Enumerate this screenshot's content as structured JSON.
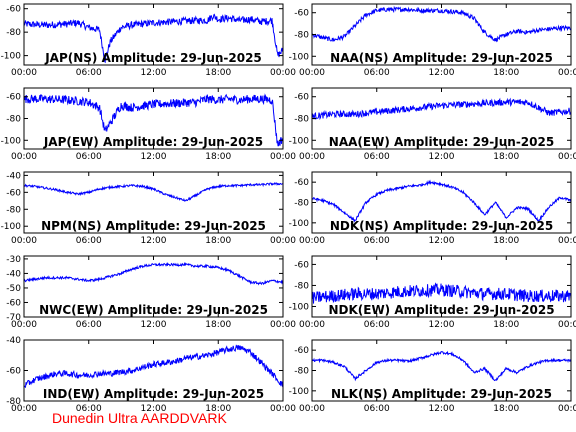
{
  "footer": "Dunedin Ultra AARDDVARK",
  "colors": {
    "trace": "#0000ff",
    "axes": "#000000",
    "footer": "#ff0000"
  },
  "chart_data": [
    {
      "type": "line",
      "title": "JAP(NS) Amplitude: 29-Jun-2025",
      "x_ticks": [
        "00:00",
        "06:00",
        "12:00",
        "18:00",
        "00:00"
      ],
      "ylim": [
        -108,
        -56
      ],
      "y_ticks": [
        -60,
        -80,
        -100
      ],
      "x": [
        0,
        2,
        4,
        5,
        6,
        7,
        7.5,
        8,
        9,
        10,
        12,
        14,
        16,
        17,
        17.5,
        18,
        19,
        20,
        21,
        22,
        23,
        23.5,
        24
      ],
      "y": [
        -73,
        -74,
        -73,
        -72,
        -76,
        -78,
        -104,
        -88,
        -76,
        -74,
        -72,
        -71,
        -70,
        -70,
        -66,
        -69,
        -68,
        -70,
        -69,
        -71,
        -70,
        -100,
        -95
      ]
    },
    {
      "type": "line",
      "title": "NAA(NS) Amplitude: 29-Jun-2025",
      "x_ticks": [
        "00:00",
        "06:00",
        "12:00",
        "18:00",
        "00:00"
      ],
      "ylim": [
        -108,
        -52
      ],
      "y_ticks": [
        -60,
        -80,
        -100
      ],
      "x": [
        0,
        1,
        2,
        3,
        4,
        5,
        6,
        7,
        8,
        9,
        10,
        11,
        12,
        13,
        14,
        15,
        16,
        17,
        18,
        19,
        20,
        21,
        22,
        23,
        24
      ],
      "y": [
        -80,
        -83,
        -85,
        -82,
        -72,
        -62,
        -58,
        -57,
        -57,
        -57,
        -58,
        -58,
        -58,
        -59,
        -60,
        -65,
        -78,
        -85,
        -80,
        -77,
        -78,
        -76,
        -75,
        -74,
        -74
      ]
    },
    {
      "type": "line",
      "title": "JAP(EW) Amplitude: 29-Jun-2025",
      "x_ticks": [
        "00:00",
        "06:00",
        "12:00",
        "18:00",
        "00:00"
      ],
      "ylim": [
        -108,
        -52
      ],
      "y_ticks": [
        -60,
        -80,
        -100
      ],
      "x": [
        0,
        2,
        4,
        5,
        6,
        7,
        7.5,
        8,
        9,
        10,
        12,
        14,
        16,
        17,
        18,
        19,
        20,
        21,
        22,
        23,
        23.5,
        24
      ],
      "y": [
        -62,
        -62,
        -63,
        -64,
        -65,
        -70,
        -92,
        -84,
        -68,
        -70,
        -67,
        -66,
        -65,
        -62,
        -63,
        -62,
        -63,
        -62,
        -62,
        -63,
        -104,
        -98
      ]
    },
    {
      "type": "line",
      "title": "NAA(EW) Amplitude: 29-Jun-2025",
      "x_ticks": [
        "00:00",
        "06:00",
        "12:00",
        "18:00",
        "00:00"
      ],
      "ylim": [
        -108,
        -52
      ],
      "y_ticks": [
        -60,
        -80,
        -100
      ],
      "x": [
        0,
        2,
        4,
        6,
        8,
        10,
        12,
        14,
        16,
        18,
        20,
        21,
        22,
        23,
        24
      ],
      "y": [
        -78,
        -76,
        -76,
        -74,
        -72,
        -70,
        -68,
        -67,
        -66,
        -65,
        -65,
        -70,
        -75,
        -74,
        -73
      ]
    },
    {
      "type": "line",
      "title": "NPM(NS) Amplitude: 29-Jun-2025",
      "x_ticks": [
        "00:00",
        "06:00",
        "12:00",
        "18:00",
        "00:00"
      ],
      "ylim": [
        -108,
        -36
      ],
      "y_ticks": [
        -40,
        -60,
        -80,
        -100
      ],
      "x": [
        0,
        1,
        2,
        3,
        4,
        5,
        6,
        7,
        8,
        9,
        10,
        11,
        12,
        13,
        14,
        15,
        16,
        17,
        18,
        19,
        20,
        21,
        22,
        23,
        24
      ],
      "y": [
        -52,
        -53,
        -55,
        -57,
        -60,
        -62,
        -60,
        -56,
        -54,
        -53,
        -52,
        -53,
        -56,
        -62,
        -66,
        -70,
        -63,
        -56,
        -53,
        -52,
        -52,
        -51,
        -51,
        -50,
        -50
      ]
    },
    {
      "type": "line",
      "title": "NDK(NS) Amplitude: 29-Jun-2025",
      "x_ticks": [
        "00:00",
        "06:00",
        "12:00",
        "18:00",
        "00:00"
      ],
      "ylim": [
        -110,
        -50
      ],
      "y_ticks": [
        -60,
        -80,
        -100
      ],
      "x": [
        0,
        1,
        2,
        3,
        4,
        5,
        6,
        7,
        8,
        9,
        10,
        11,
        12,
        13,
        14,
        15,
        16,
        17,
        18,
        19,
        20,
        21,
        22,
        23,
        24
      ],
      "y": [
        -76,
        -78,
        -82,
        -90,
        -98,
        -80,
        -72,
        -68,
        -66,
        -64,
        -63,
        -60,
        -62,
        -65,
        -70,
        -80,
        -92,
        -80,
        -95,
        -85,
        -86,
        -98,
        -84,
        -75,
        -78
      ]
    },
    {
      "type": "line",
      "title": "NWC(EW) Amplitude: 29-Jun-2025",
      "x_ticks": [
        "00:00",
        "06:00",
        "12:00",
        "18:00",
        "00:00"
      ],
      "ylim": [
        -70,
        -28
      ],
      "y_ticks": [
        -30,
        -40,
        -50,
        -60,
        -70
      ],
      "x": [
        0,
        1,
        2,
        3,
        4,
        5,
        6,
        7,
        8,
        9,
        10,
        11,
        12,
        13,
        14,
        15,
        16,
        17,
        18,
        19,
        20,
        21,
        22,
        23,
        24
      ],
      "y": [
        -45,
        -44,
        -43,
        -43,
        -43,
        -44,
        -45,
        -44,
        -42,
        -40,
        -37,
        -35,
        -34,
        -34,
        -34,
        -34,
        -35,
        -35,
        -36,
        -38,
        -42,
        -46,
        -47,
        -45,
        -46
      ]
    },
    {
      "type": "line",
      "title": "NDK(EW) Amplitude: 29-Jun-2025",
      "x_ticks": [
        "00:00",
        "06:00",
        "12:00",
        "18:00",
        "00:00"
      ],
      "ylim": [
        -110,
        -52
      ],
      "y_ticks": [
        -60,
        -80,
        -100
      ],
      "x": [
        0,
        2,
        4,
        6,
        8,
        10,
        12,
        14,
        16,
        18,
        20,
        22,
        24
      ],
      "y": [
        -92,
        -90,
        -88,
        -88,
        -86,
        -85,
        -84,
        -86,
        -88,
        -88,
        -90,
        -90,
        -90
      ]
    },
    {
      "type": "line",
      "title": "IND(EW) Amplitude: 29-Jun-2025",
      "x_ticks": [
        "00:00",
        "06:00",
        "12:00",
        "18:00",
        "00:00"
      ],
      "ylim": [
        -80,
        -40
      ],
      "y_ticks": [
        -40,
        -60,
        -80
      ],
      "x": [
        0,
        1,
        2,
        3,
        4,
        5,
        6,
        7,
        8,
        9,
        10,
        11,
        12,
        13,
        14,
        15,
        16,
        17,
        18,
        19,
        20,
        21,
        22,
        23,
        24
      ],
      "y": [
        -70,
        -66,
        -64,
        -62,
        -62,
        -63,
        -63,
        -62,
        -62,
        -61,
        -60,
        -58,
        -56,
        -55,
        -54,
        -52,
        -51,
        -50,
        -48,
        -46,
        -45,
        -48,
        -55,
        -62,
        -70
      ]
    },
    {
      "type": "line",
      "title": "NLK(NS) Amplitude: 29-Jun-2025",
      "x_ticks": [
        "00:00",
        "06:00",
        "12:00",
        "18:00",
        "00:00"
      ],
      "ylim": [
        -110,
        -50
      ],
      "y_ticks": [
        -60,
        -80,
        -100
      ],
      "x": [
        0,
        1,
        2,
        3,
        4,
        5,
        6,
        7,
        8,
        9,
        10,
        11,
        12,
        13,
        14,
        15,
        16,
        17,
        18,
        19,
        20,
        21,
        22,
        23,
        24
      ],
      "y": [
        -70,
        -70,
        -72,
        -76,
        -88,
        -80,
        -72,
        -70,
        -70,
        -71,
        -68,
        -65,
        -62,
        -64,
        -70,
        -82,
        -78,
        -90,
        -78,
        -82,
        -76,
        -72,
        -70,
        -70,
        -70
      ]
    }
  ]
}
